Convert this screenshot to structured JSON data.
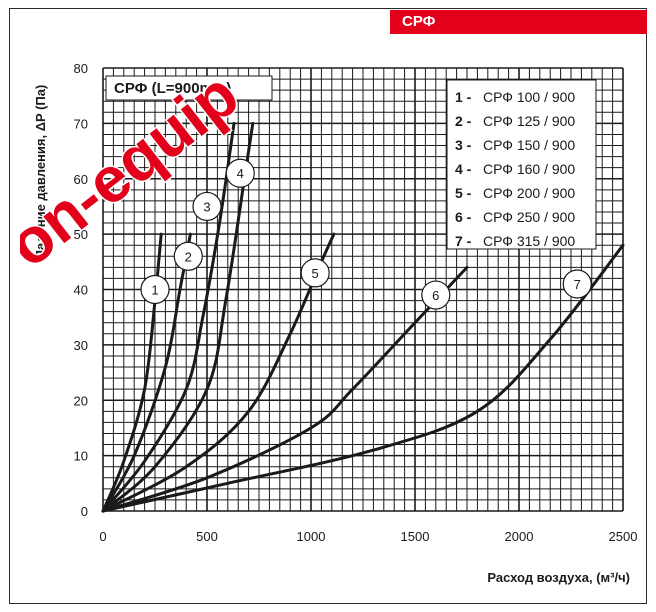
{
  "badge": "СРФ",
  "chart_data": {
    "type": "line",
    "title": "СРФ (L=900mm)",
    "xlabel": "Расход воздуха, (м³/ч)",
    "ylabel": "Падение давления, ΔP (Па)",
    "xlim": [
      0,
      2500
    ],
    "ylim": [
      0,
      80
    ],
    "x_ticks": [
      "0",
      "500",
      "1000",
      "1500",
      "2000",
      "2500"
    ],
    "y_ticks": [
      "0",
      "10",
      "20",
      "30",
      "40",
      "50",
      "60",
      "70",
      "80"
    ],
    "grid": true,
    "legend_position": "top-right",
    "series": [
      {
        "id": "1",
        "name": "СРФ 100 / 900",
        "x": [
          0,
          100,
          200,
          250,
          270,
          280
        ],
        "y": [
          0,
          9,
          22,
          38,
          46,
          50
        ],
        "label_at": [
          250,
          40
        ]
      },
      {
        "id": "2",
        "name": "СРФ 125 / 900",
        "x": [
          0,
          150,
          300,
          370,
          420
        ],
        "y": [
          0,
          10,
          26,
          40,
          50
        ],
        "label_at": [
          410,
          46
        ]
      },
      {
        "id": "3",
        "name": "СРФ 150 / 900",
        "x": [
          0,
          200,
          400,
          480,
          560,
          630
        ],
        "y": [
          0,
          9,
          22,
          35,
          52,
          70
        ],
        "label_at": [
          500,
          55
        ]
      },
      {
        "id": "4",
        "name": "СРФ 160 / 900",
        "x": [
          0,
          250,
          500,
          590,
          680,
          720
        ],
        "y": [
          0,
          8,
          22,
          38,
          60,
          70
        ],
        "label_at": [
          660,
          61
        ]
      },
      {
        "id": "5",
        "name": "СРФ 200 / 900",
        "x": [
          0,
          400,
          700,
          900,
          1050,
          1110
        ],
        "y": [
          0,
          8,
          18,
          32,
          45,
          50
        ],
        "label_at": [
          1020,
          43
        ]
      },
      {
        "id": "6",
        "name": "СРФ 250 / 900",
        "x": [
          0,
          500,
          1000,
          1200,
          1500,
          1750
        ],
        "y": [
          0,
          6,
          15,
          22,
          34,
          44
        ],
        "label_at": [
          1600,
          39
        ]
      },
      {
        "id": "7",
        "name": "СРФ 315 / 900",
        "x": [
          0,
          600,
          1300,
          1800,
          2150,
          2500
        ],
        "y": [
          0,
          5,
          11,
          18,
          31,
          48
        ],
        "label_at": [
          2280,
          41
        ]
      }
    ]
  },
  "watermark": "on-equip"
}
